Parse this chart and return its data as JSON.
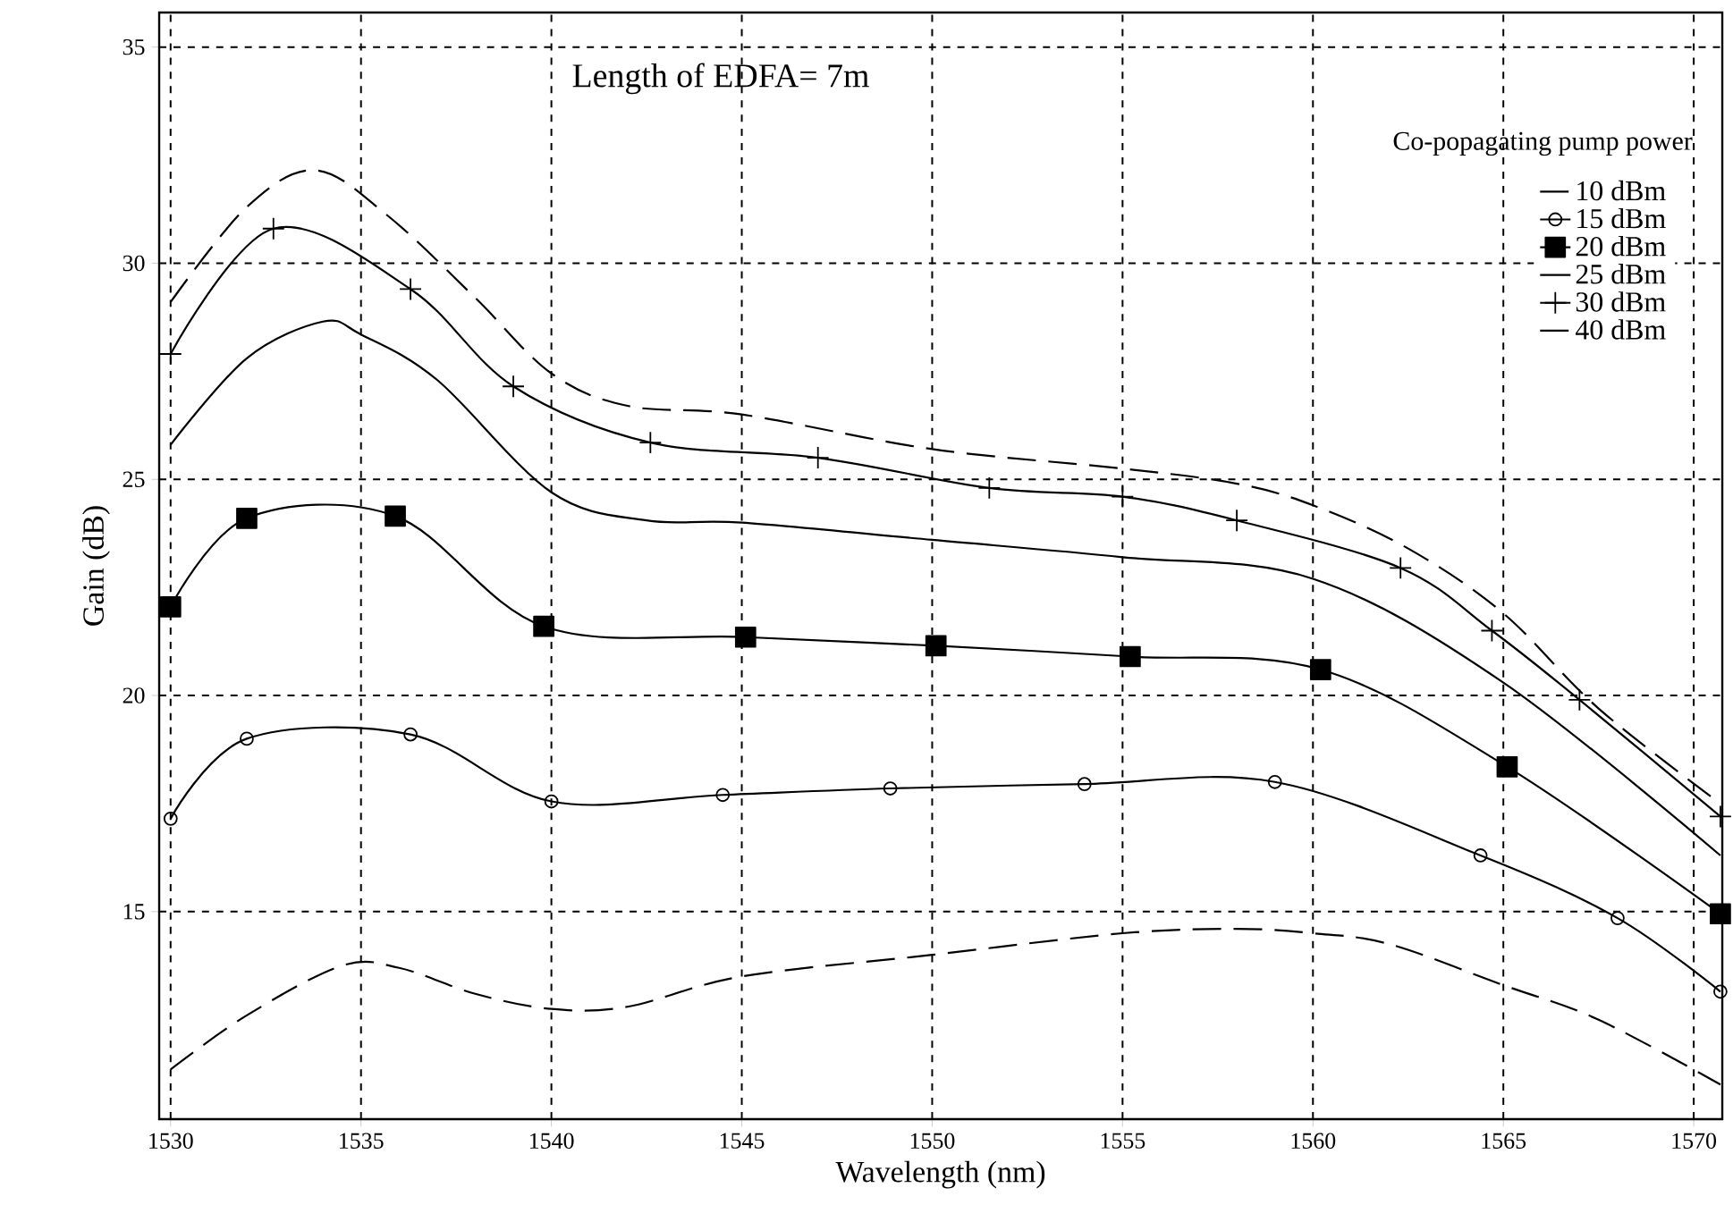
{
  "chart_data": {
    "type": "line",
    "xlabel": "Wavelength (nm)",
    "ylabel": "Gain (dB)",
    "legend_title": "Co-popagating pump power",
    "annotations": [
      "Length of EDFA= 7m"
    ],
    "xlim": [
      1529.7,
      1570.75
    ],
    "ylim": [
      10.2,
      35.8
    ],
    "xticks": [
      1530,
      1535,
      1540,
      1545,
      1550,
      1555,
      1560,
      1565,
      1570
    ],
    "yticks": [
      15,
      20,
      25,
      30,
      35
    ],
    "grid": true,
    "legend": "top right",
    "series": [
      {
        "name": "10 dBm",
        "color": "#000000",
        "line_style": "dashed",
        "marker": "none",
        "x": [
          1530,
          1532,
          1534.5,
          1536,
          1538,
          1540,
          1542,
          1545,
          1550,
          1555,
          1558,
          1560,
          1562,
          1565,
          1567.5,
          1570.7
        ],
        "values": [
          11.35,
          12.6,
          13.75,
          13.7,
          13.1,
          12.75,
          12.8,
          13.5,
          14.0,
          14.5,
          14.6,
          14.5,
          14.25,
          13.3,
          12.5,
          11.0
        ]
      },
      {
        "name": "15 dBm",
        "color": "#000000",
        "line_style": "solid",
        "marker": "circle",
        "x": [
          1530,
          1532,
          1536.3,
          1540,
          1544.5,
          1548.9,
          1554.0,
          1559,
          1564.4,
          1568,
          1570.7
        ],
        "values": [
          17.15,
          19.0,
          19.1,
          17.55,
          17.7,
          17.85,
          17.95,
          18.0,
          16.3,
          14.85,
          13.15
        ]
      },
      {
        "name": "20 dBm",
        "color": "#000000",
        "line_style": "solid",
        "marker": "square",
        "x": [
          1530,
          1532,
          1535.9,
          1539.8,
          1545.1,
          1550.1,
          1555.2,
          1560.2,
          1565.1,
          1570.7
        ],
        "values": [
          22.05,
          24.1,
          24.15,
          21.6,
          21.35,
          21.15,
          20.9,
          20.6,
          18.35,
          14.95
        ]
      },
      {
        "name": "25 dBm",
        "color": "#000000",
        "line_style": "solid",
        "marker": "none",
        "x": [
          1530,
          1532,
          1534,
          1535,
          1537,
          1540,
          1542.5,
          1545,
          1550,
          1555,
          1560,
          1565,
          1570.7
        ],
        "values": [
          25.8,
          27.8,
          28.65,
          28.35,
          27.3,
          24.7,
          24.05,
          24.0,
          23.6,
          23.2,
          22.7,
          20.3,
          16.3
        ]
      },
      {
        "name": "30 dBm",
        "color": "#000000",
        "line_style": "solid",
        "marker": "cross",
        "x": [
          1530,
          1532.7,
          1536.3,
          1539,
          1542.6,
          1547,
          1551.5,
          1555,
          1558,
          1562.3,
          1564.7,
          1567,
          1570.7
        ],
        "values": [
          27.9,
          30.8,
          29.4,
          27.15,
          25.85,
          25.5,
          24.8,
          24.6,
          24.05,
          22.95,
          21.5,
          19.9,
          17.2
        ]
      },
      {
        "name": "40 dBm",
        "color": "#000000",
        "line_style": "dashed",
        "marker": "none",
        "x": [
          1530,
          1532,
          1533.8,
          1535.7,
          1538,
          1540,
          1542,
          1545,
          1550,
          1555,
          1558,
          1560,
          1562.5,
          1565,
          1567.5,
          1570.7
        ],
        "values": [
          29.1,
          31.3,
          32.15,
          31.1,
          29.2,
          27.45,
          26.7,
          26.5,
          25.7,
          25.25,
          24.9,
          24.4,
          23.4,
          21.9,
          19.7,
          17.5
        ]
      }
    ]
  }
}
